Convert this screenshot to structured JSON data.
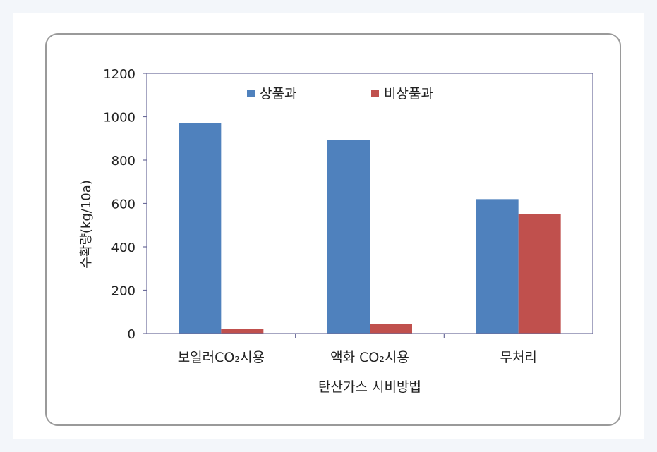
{
  "chart_data": {
    "type": "bar",
    "categories": [
      "보일러CO₂시용",
      "액화 CO₂시용",
      "무처리"
    ],
    "series": [
      {
        "name": "상품과",
        "values": [
          970,
          893,
          620
        ],
        "color": "#4f81bd"
      },
      {
        "name": "비상품과",
        "values": [
          22,
          43,
          550
        ],
        "color": "#c0504d"
      }
    ],
    "xlabel": "탄산가스 시비방법",
    "ylabel": "수확량(kg/10a)",
    "ylim": [
      0,
      1200
    ],
    "yticks": [
      0,
      200,
      400,
      600,
      800,
      1000,
      1200
    ],
    "legend_position": "top"
  }
}
